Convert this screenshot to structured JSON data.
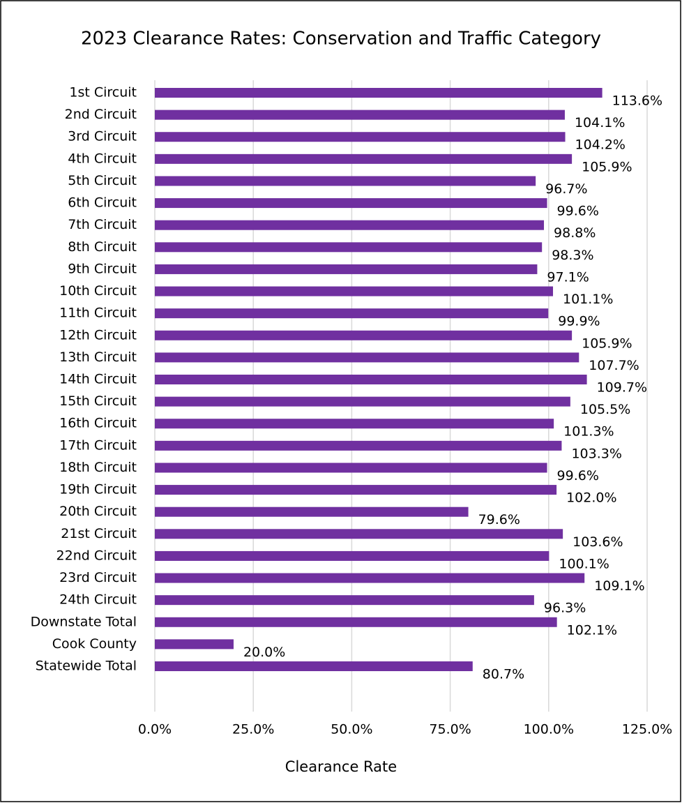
{
  "chart_data": {
    "type": "bar",
    "orientation": "horizontal",
    "title": "2023 Clearance Rates:  Conservation and Traffic Category",
    "x_label": "Clearance Rate",
    "categories": [
      "1st Circuit",
      "2nd Circuit",
      "3rd Circuit",
      "4th Circuit",
      "5th Circuit",
      "6th Circuit",
      "7th Circuit",
      "8th Circuit",
      "9th Circuit",
      "10th Circuit",
      "11th Circuit",
      "12th Circuit",
      "13th Circuit",
      "14th Circuit",
      "15th Circuit",
      "16th Circuit",
      "17th Circuit",
      "18th Circuit",
      "19th Circuit",
      "20th Circuit",
      "21st Circuit",
      "22nd Circuit",
      "23rd Circuit",
      "24th Circuit",
      "Downstate Total",
      "Cook County",
      "Statewide Total"
    ],
    "values": [
      113.6,
      104.1,
      104.2,
      105.9,
      96.7,
      99.6,
      98.8,
      98.3,
      97.1,
      101.1,
      99.9,
      105.9,
      107.7,
      109.7,
      105.5,
      101.3,
      103.3,
      99.6,
      102.0,
      79.6,
      103.6,
      100.1,
      109.1,
      96.3,
      102.1,
      20.0,
      80.7
    ],
    "value_labels": [
      "113.6%",
      "104.1%",
      "104.2%",
      "105.9%",
      "96.7%",
      "99.6%",
      "98.8%",
      "98.3%",
      "97.1%",
      "101.1%",
      "99.9%",
      "105.9%",
      "107.7%",
      "109.7%",
      "105.5%",
      "101.3%",
      "103.3%",
      "99.6%",
      "102.0%",
      "79.6%",
      "103.6%",
      "100.1%",
      "109.1%",
      "96.3%",
      "102.1%",
      "20.0%",
      "80.7%"
    ],
    "color": "#7030a0",
    "xlim": [
      0,
      125
    ],
    "xticks": [
      {
        "value": 0,
        "label": "0.0%"
      },
      {
        "value": 25,
        "label": "25.0%"
      },
      {
        "value": 50,
        "label": "50.0%"
      },
      {
        "value": 75,
        "label": "75.0%"
      },
      {
        "value": 100,
        "label": "100.0%"
      },
      {
        "value": 125,
        "label": "125.0%"
      }
    ],
    "grid": true
  }
}
